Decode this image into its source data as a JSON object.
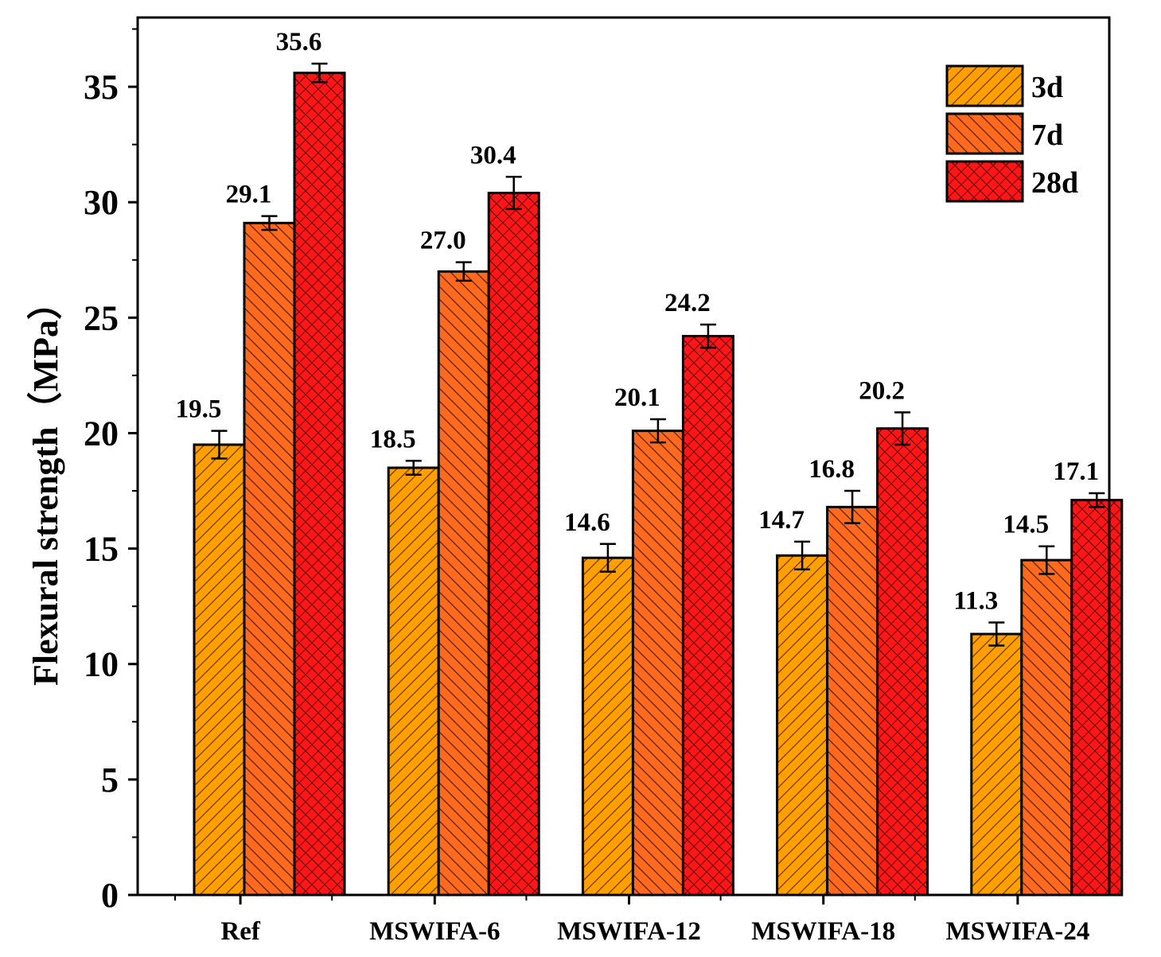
{
  "chart_data": {
    "type": "bar",
    "title": "",
    "xlabel": "",
    "ylabel": "Flexural strength（MPa）",
    "ylim": [
      0,
      38
    ],
    "yticks": [
      0,
      5,
      10,
      15,
      20,
      25,
      30,
      35
    ],
    "categories": [
      "Ref",
      "MSWIFA-6",
      "MSWIFA-12",
      "MSWIFA-18",
      "MSWIFA-24"
    ],
    "series": [
      {
        "name": "3d",
        "values": [
          19.5,
          18.5,
          14.6,
          14.7,
          11.3
        ],
        "errors": [
          0.6,
          0.3,
          0.6,
          0.6,
          0.5
        ],
        "labels": [
          "19.5",
          "18.5",
          "14.6",
          "14.7",
          "11.3"
        ],
        "color": "#FF9F00",
        "hatch": "diagonal-up"
      },
      {
        "name": "7d",
        "values": [
          29.1,
          27.0,
          20.1,
          16.8,
          14.5
        ],
        "errors": [
          0.3,
          0.4,
          0.5,
          0.7,
          0.6
        ],
        "labels": [
          "29.1",
          "27.0",
          "20.1",
          "16.8",
          "14.5"
        ],
        "color": "#FF6A1F",
        "hatch": "diagonal-down"
      },
      {
        "name": "28d",
        "values": [
          35.6,
          30.4,
          24.2,
          20.2,
          17.1
        ],
        "errors": [
          0.4,
          0.7,
          0.5,
          0.7,
          0.3
        ],
        "labels": [
          "35.6",
          "30.4",
          "24.2",
          "20.2",
          "17.1"
        ],
        "color": "#FF1616",
        "hatch": "crosshatch"
      }
    ],
    "legend_position": "top-right",
    "grid": false
  }
}
